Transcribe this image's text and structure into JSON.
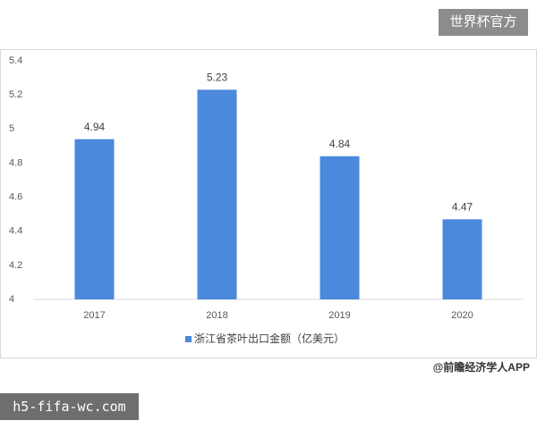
{
  "chart_data": {
    "type": "bar",
    "categories": [
      "2017",
      "2018",
      "2019",
      "2020"
    ],
    "series": [
      {
        "name": "浙江省茶叶出口金额（亿美元）",
        "color": "#4a89dc",
        "values": [
          4.94,
          5.23,
          4.84,
          4.47
        ]
      }
    ],
    "ylim": [
      4,
      5.4
    ],
    "yticks": [
      4,
      4.2,
      4.4,
      4.6,
      4.8,
      5,
      5.2,
      5.4
    ],
    "legend": "bottom",
    "source": "@前瞻经济学人APP"
  },
  "overlay": {
    "badge": "世界杯官方",
    "site": "h5-fifa-wc.com"
  }
}
